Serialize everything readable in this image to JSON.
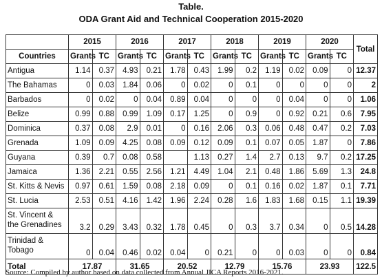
{
  "title": "Table.",
  "subtitle": "ODA Grant Aid and Technical Cooperation 2015-2020",
  "table": {
    "country_header": "Countries",
    "years": [
      "2015",
      "2016",
      "2017",
      "2018",
      "2019",
      "2020"
    ],
    "sub_headers": [
      "Grants",
      "TC"
    ],
    "total_header": "Total",
    "rows": [
      {
        "country": "Antigua",
        "cells": [
          1.14,
          0.37,
          4.93,
          0.21,
          1.78,
          0.43,
          1.99,
          0.2,
          1.19,
          0.02,
          0.09,
          0
        ],
        "total": 12.37
      },
      {
        "country": "The Bahamas",
        "cells": [
          0,
          0.03,
          1.84,
          0.06,
          0,
          0.02,
          0,
          0.1,
          0,
          0,
          0,
          0
        ],
        "total": 2
      },
      {
        "country": "Barbados",
        "cells": [
          0,
          0.02,
          0,
          0.04,
          0.89,
          0.04,
          0,
          0,
          0,
          0.04,
          0,
          0
        ],
        "total": 1.06
      },
      {
        "country": "Belize",
        "cells": [
          0.99,
          0.88,
          0.99,
          1.09,
          0.17,
          1.25,
          0,
          0.9,
          0,
          0.92,
          0.21,
          0.6
        ],
        "total": 7.95
      },
      {
        "country": "Dominica",
        "cells": [
          0.37,
          0.08,
          2.9,
          0.01,
          0,
          0.16,
          2.06,
          0.3,
          0.06,
          0.48,
          0.47,
          0.2
        ],
        "total": 7.03
      },
      {
        "country": "Grenada",
        "cells": [
          1.09,
          0.09,
          4.25,
          0.08,
          0.09,
          0.12,
          0.09,
          0.1,
          0.07,
          0.05,
          1.87,
          0
        ],
        "total": 7.86
      },
      {
        "country": "Guyana",
        "cells": [
          0.39,
          0.7,
          0.08,
          0.58,
          null,
          1.13,
          0.27,
          1.4,
          2.7,
          0.13,
          9.7,
          0.2
        ],
        "total": 17.25
      },
      {
        "country": "Jamaica",
        "cells": [
          1.36,
          2.21,
          0.55,
          2.56,
          1.21,
          4.49,
          1.04,
          2.1,
          0.48,
          1.86,
          5.69,
          1.3
        ],
        "total": 24.8
      },
      {
        "country": "St. Kitts & Nevis",
        "cells": [
          0.97,
          0.61,
          1.59,
          0.08,
          2.18,
          0.09,
          0,
          0.1,
          0.16,
          0.02,
          1.87,
          0.1
        ],
        "total": 7.71
      },
      {
        "country": "St. Lucia",
        "cells": [
          2.53,
          0.51,
          4.16,
          1.42,
          1.96,
          2.24,
          0.28,
          1.6,
          1.83,
          1.68,
          0.15,
          1.1
        ],
        "total": 19.39
      },
      {
        "country": "St. Vincent &\nthe Grenadines",
        "cells": [
          3.2,
          0.29,
          3.43,
          0.32,
          1.78,
          0.45,
          0,
          0.3,
          3.7,
          0.34,
          0,
          0.5
        ],
        "total": 14.28
      },
      {
        "country": "Trinidad &\nTobago",
        "cells": [
          0,
          0.04,
          0.46,
          0.02,
          0.04,
          0,
          0.21,
          0,
          0,
          0.03,
          0,
          0
        ],
        "total": 0.84
      }
    ],
    "total_row": {
      "label": "Total",
      "year_totals": [
        17.87,
        31.65,
        20.52,
        12.79,
        15.76,
        23.93
      ],
      "total": 122.5
    }
  },
  "source": "Source: Compiled by author based on data collected from Annual JICA Reports 2016-2021."
}
